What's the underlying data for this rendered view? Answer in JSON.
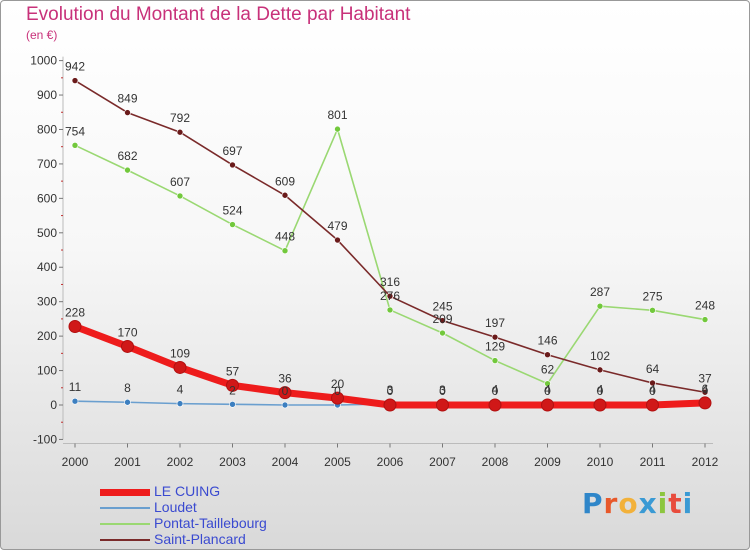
{
  "title": "Evolution du Montant de la Dette par Habitant",
  "subtitle": "(en €)",
  "logo": "Proxiti",
  "chart_data": {
    "type": "line",
    "title": "Evolution du Montant de la Dette par Habitant",
    "subtitle": "(en €)",
    "xlabel": "",
    "ylabel": "",
    "ylim": [
      -100,
      1000
    ],
    "yticks": [
      -100,
      0,
      100,
      200,
      300,
      400,
      500,
      600,
      700,
      800,
      900,
      1000
    ],
    "grid": false,
    "legend_position": "bottom-left",
    "x": [
      "2000",
      "2001",
      "2002",
      "2003",
      "2004",
      "2005",
      "2006",
      "2007",
      "2008",
      "2009",
      "2010",
      "2011",
      "2012"
    ],
    "series": [
      {
        "name": "LE CUING",
        "color": "#ee1c1c",
        "marker_color": "#d01818",
        "values": [
          228,
          170,
          109,
          57,
          36,
          20,
          0,
          0,
          0,
          0,
          0,
          0,
          6
        ]
      },
      {
        "name": "Loudet",
        "color": "#6a9fcf",
        "marker_color": "#3c7fc0",
        "values": [
          11,
          8,
          4,
          2,
          0,
          0,
          3,
          3,
          4,
          4,
          4,
          4,
          4
        ]
      },
      {
        "name": "Pontat-Taillebourg",
        "color": "#9ad872",
        "marker_color": "#72c83c",
        "values": [
          754,
          682,
          607,
          524,
          448,
          801,
          276,
          209,
          129,
          62,
          287,
          275,
          248
        ]
      },
      {
        "name": "Saint-Plancard",
        "color": "#7a2a2a",
        "marker_color": "#6a1a1a",
        "values": [
          942,
          849,
          792,
          697,
          609,
          479,
          316,
          245,
          197,
          146,
          102,
          64,
          37
        ]
      }
    ]
  }
}
